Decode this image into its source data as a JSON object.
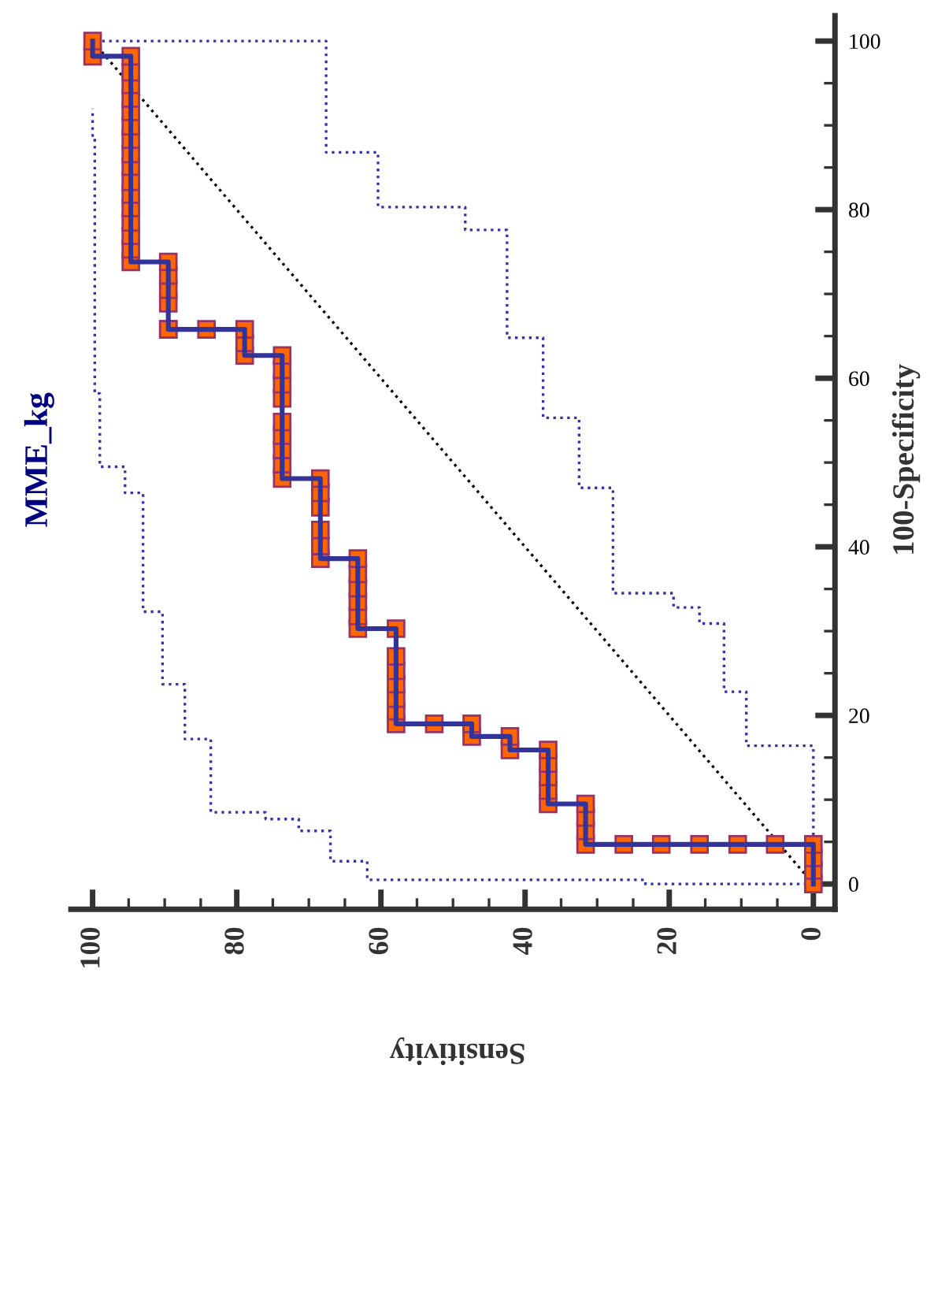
{
  "chart_data": {
    "type": "line",
    "title": "MME_kg",
    "xlabel": "Sensitivity",
    "ylabel": "100-Specificity",
    "xlim": [
      103,
      -3
    ],
    "xticks": [
      100,
      80,
      60,
      40,
      20,
      0
    ],
    "ylim": [
      -3,
      103
    ],
    "yticks": [
      0,
      20,
      40,
      60,
      80,
      100
    ],
    "grid": false,
    "legend": false,
    "series": [
      {
        "color": "#333399",
        "marker": "square",
        "line_style": "solid",
        "values": [
          0,
          1.6,
          3.1,
          4.7,
          4.7,
          4.7,
          4.7,
          4.7,
          4.7,
          4.7,
          6.3,
          7.9,
          9.5,
          9.5,
          11.1,
          12.7,
          14.3,
          15.9,
          15.9,
          17.5,
          17.5,
          19.0,
          19.0,
          19.0,
          20.5,
          22.0,
          23.7,
          25.3,
          27.0,
          30.3,
          30.3,
          31.8,
          33.5,
          35.1,
          36.8,
          38.6,
          38.6,
          40.1,
          42.0,
          44.7,
          46.4,
          48.1,
          48.1,
          49.8,
          51.5,
          53.2,
          54.8,
          57.6,
          59.3,
          61.0,
          62.7,
          62.7,
          64.2,
          65.8,
          65.8,
          65.8,
          65.8,
          68.9,
          70.5,
          72.2,
          73.8,
          73.8,
          75.3,
          76.9,
          78.5,
          80.2,
          81.8,
          83.3,
          85.1,
          86.6,
          88.3,
          89.9,
          91.6,
          93.2,
          94.8,
          96.3,
          98.2,
          98.2,
          100
        ],
        "x": [
          0,
          0,
          0,
          0,
          5.3,
          10.5,
          15.8,
          21.1,
          26.3,
          31.6,
          31.6,
          31.6,
          31.6,
          36.8,
          36.8,
          36.8,
          36.8,
          36.8,
          42.1,
          42.1,
          47.4,
          47.4,
          52.6,
          57.9,
          57.9,
          57.9,
          57.9,
          57.9,
          57.9,
          57.9,
          63.2,
          63.2,
          63.2,
          63.2,
          63.2,
          63.2,
          68.4,
          68.4,
          68.4,
          68.4,
          68.4,
          68.4,
          73.7,
          73.7,
          73.7,
          73.7,
          73.7,
          73.7,
          73.7,
          73.7,
          73.7,
          78.9,
          78.9,
          78.9,
          84.2,
          89.5,
          89.5,
          89.5,
          89.5,
          89.5,
          89.5,
          94.7,
          94.7,
          94.7,
          94.7,
          94.7,
          94.7,
          94.7,
          94.7,
          94.7,
          94.7,
          94.7,
          94.7,
          94.7,
          94.7,
          94.7,
          94.7,
          100,
          100
        ]
      },
      {
        "color": "#3333aa",
        "marker": "none",
        "line_style": "dotted",
        "values": [
          0,
          0,
          0.5,
          0.5,
          2.7,
          2.7,
          6.3,
          6.3,
          7.7,
          7.7,
          8.5,
          8.5,
          17.2,
          17.2,
          23.7,
          23.7,
          32.3,
          32.3,
          46.4,
          46.4,
          49.5,
          49.5,
          58.2,
          58.2,
          88.8,
          88.8,
          92.0
        ],
        "x": [
          0,
          23.3,
          23.3,
          61.9,
          61.9,
          67.0,
          67.0,
          71.4,
          71.4,
          76.0,
          76.0,
          83.6,
          83.6,
          87.2,
          87.2,
          90.3,
          90.3,
          93.0,
          93.0,
          95.5,
          95.5,
          99.0,
          99.0,
          99.7,
          99.7,
          100,
          100
        ]
      },
      {
        "color": "#3333aa",
        "marker": "none",
        "line_style": "dotted",
        "values": [
          0,
          16.4,
          16.4,
          22.8,
          22.8,
          30.9,
          30.9,
          32.8,
          32.8,
          34.5,
          34.5,
          47.0,
          47.0,
          55.3,
          55.3,
          64.8,
          64.8,
          77.6,
          77.6,
          80.3,
          80.3,
          86.8,
          86.8,
          100,
          100
        ],
        "x": [
          0,
          0,
          9.3,
          9.3,
          12.4,
          12.4,
          15.8,
          15.8,
          19.4,
          19.4,
          27.8,
          27.8,
          32.5,
          32.5,
          37.5,
          37.5,
          42.5,
          42.5,
          48.3,
          48.3,
          60.4,
          60.4,
          67.6,
          67.6,
          99.0
        ]
      },
      {
        "color": "#000000",
        "marker": "none",
        "line_style": "dotted",
        "x": [
          0,
          100
        ],
        "values": [
          0,
          100
        ]
      }
    ]
  }
}
